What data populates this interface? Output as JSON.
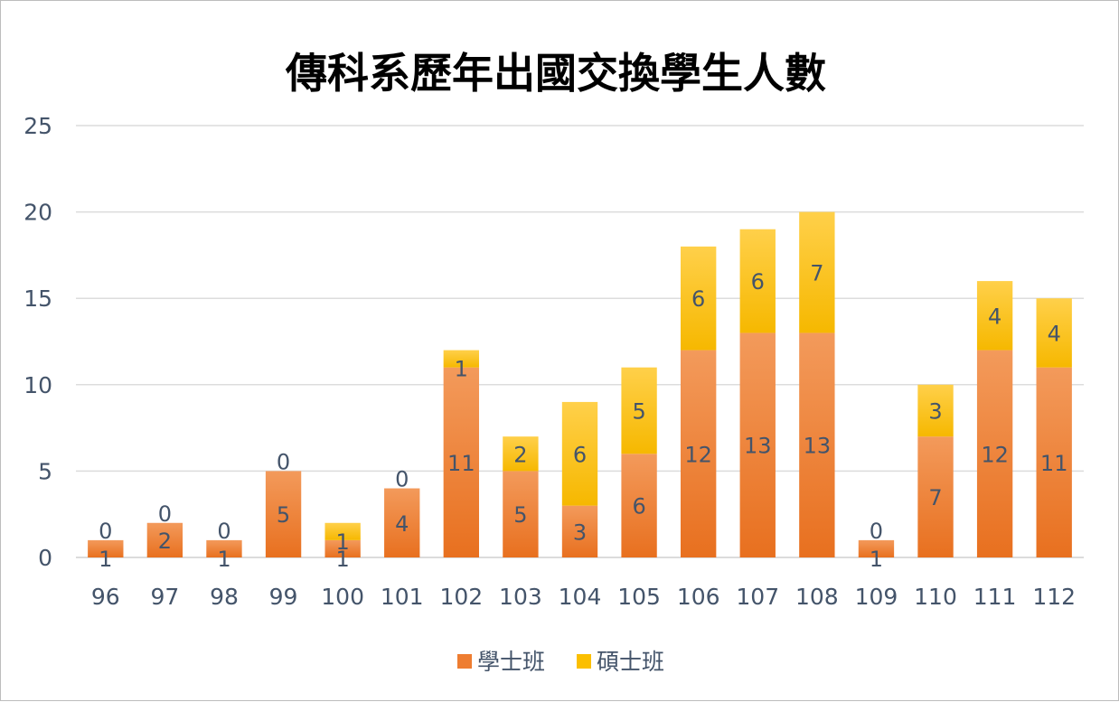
{
  "chart_data": {
    "type": "bar",
    "stacked": true,
    "title": "傳科系歷年出國交換學生人數",
    "xlabel": "",
    "ylabel": "",
    "categories": [
      "96",
      "97",
      "98",
      "99",
      "100",
      "101",
      "102",
      "103",
      "104",
      "105",
      "106",
      "107",
      "108",
      "109",
      "110",
      "111",
      "112"
    ],
    "series": [
      {
        "name": "學士班",
        "color": "#ee7d31",
        "values": [
          1,
          2,
          1,
          5,
          1,
          4,
          11,
          5,
          3,
          6,
          12,
          13,
          13,
          1,
          7,
          12,
          11
        ]
      },
      {
        "name": "碩士班",
        "color": "#fbbf00",
        "values": [
          0,
          0,
          0,
          0,
          1,
          0,
          1,
          2,
          6,
          5,
          6,
          6,
          7,
          0,
          3,
          4,
          4
        ]
      }
    ],
    "ylim": [
      0,
      25
    ],
    "yticks": [
      0,
      5,
      10,
      15,
      20,
      25
    ],
    "grid": true,
    "legend": "bottom"
  }
}
